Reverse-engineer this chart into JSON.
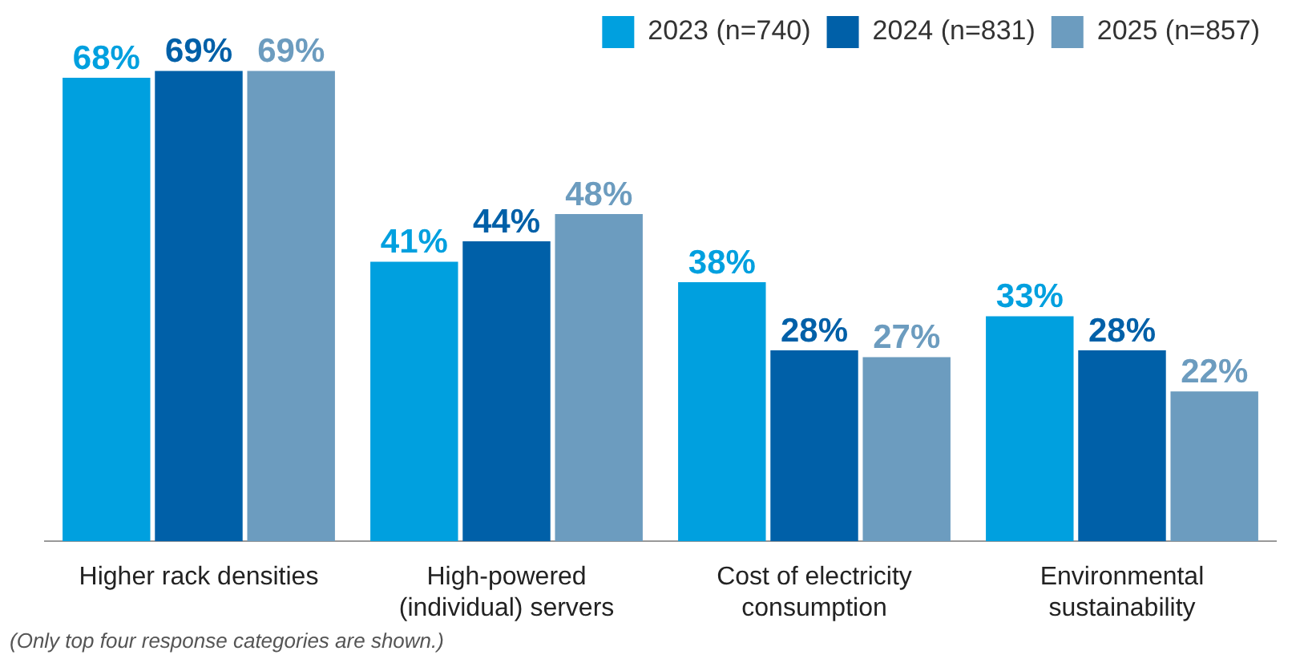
{
  "chart_data": {
    "type": "bar",
    "categories": [
      "Higher rack densities",
      "High-powered (individual) servers",
      "Cost of electricity consumption",
      "Environmental sustainability"
    ],
    "series": [
      {
        "name": "2023 (n=740)",
        "color": "#00a0df",
        "values": [
          68,
          41,
          38,
          33
        ],
        "value_labels": [
          "68%",
          "41%",
          "38%",
          "33%"
        ]
      },
      {
        "name": "2024 (n=831)",
        "color": "#0060a8",
        "values": [
          69,
          44,
          28,
          28
        ],
        "value_labels": [
          "69%",
          "44%",
          "28%",
          "28%"
        ]
      },
      {
        "name": "2025 (n=857)",
        "color": "#6c9cbf",
        "values": [
          69,
          48,
          27,
          22
        ],
        "value_labels": [
          "69%",
          "48%",
          "27%",
          "22%"
        ]
      }
    ],
    "relative": false,
    "legend": "top right",
    "grid": false,
    "annotations": [
      "(Only top four response categories are shown.)"
    ]
  }
}
